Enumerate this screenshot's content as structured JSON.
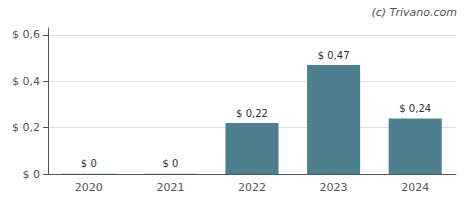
{
  "chart_data": {
    "type": "bar",
    "categories": [
      "2020",
      "2021",
      "2022",
      "2023",
      "2024"
    ],
    "values": [
      0.001,
      0.001,
      0.22,
      0.47,
      0.24
    ],
    "value_labels": [
      "$ 0",
      "$ 0",
      "$ 0,22",
      "$ 0,47",
      "$ 0,24"
    ],
    "color": "#4d7f8f",
    "ylim": [
      0,
      0.63
    ],
    "yticks": [
      {
        "value": 0,
        "label": "$ 0"
      },
      {
        "value": 0.2,
        "label": "$ 0,2"
      },
      {
        "value": 0.4,
        "label": "$ 0,4"
      },
      {
        "value": 0.6,
        "label": "$ 0,6"
      }
    ],
    "grid": true,
    "data_labels": true,
    "annotations": [
      "(c) Trivano.com"
    ]
  }
}
